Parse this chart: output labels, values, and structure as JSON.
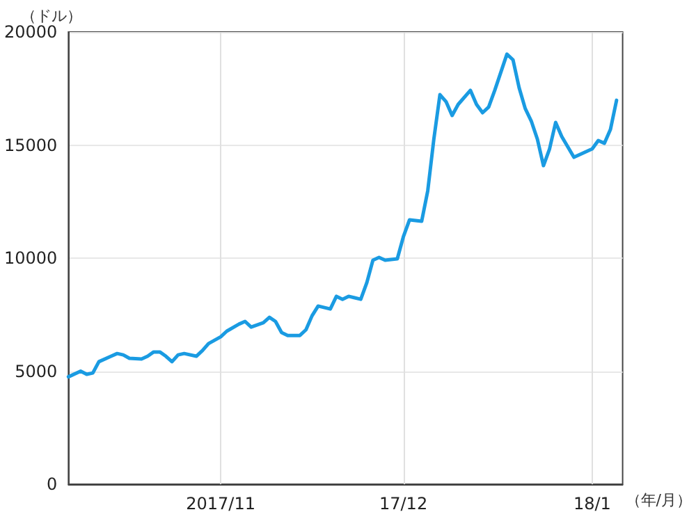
{
  "chart_data": {
    "type": "line",
    "ylabel": "（ドル）",
    "xlabel": "（年/月）",
    "x": [
      "2017-10-07",
      "2017-10-09",
      "2017-10-10",
      "2017-10-11",
      "2017-10-12",
      "2017-10-14",
      "2017-10-15",
      "2017-10-16",
      "2017-10-17",
      "2017-10-19",
      "2017-10-20",
      "2017-10-21",
      "2017-10-22",
      "2017-10-23",
      "2017-10-24",
      "2017-10-25",
      "2017-10-26",
      "2017-10-28",
      "2017-10-29",
      "2017-10-30",
      "2017-11-01",
      "2017-11-02",
      "2017-11-04",
      "2017-11-05",
      "2017-11-06",
      "2017-11-08",
      "2017-11-09",
      "2017-11-10",
      "2017-11-11",
      "2017-11-12",
      "2017-11-14",
      "2017-11-15",
      "2017-11-16",
      "2017-11-17",
      "2017-11-19",
      "2017-11-20",
      "2017-11-21",
      "2017-11-22",
      "2017-11-24",
      "2017-11-25",
      "2017-11-26",
      "2017-11-27",
      "2017-11-28",
      "2017-11-30",
      "2017-12-01",
      "2017-12-02",
      "2017-12-04",
      "2017-12-05",
      "2017-12-06",
      "2017-12-07",
      "2017-12-08",
      "2017-12-09",
      "2017-12-10",
      "2017-12-12",
      "2017-12-13",
      "2017-12-14",
      "2017-12-15",
      "2017-12-16",
      "2017-12-17",
      "2017-12-18",
      "2017-12-19",
      "2017-12-20",
      "2017-12-21",
      "2017-12-22",
      "2017-12-23",
      "2017-12-24",
      "2017-12-25",
      "2017-12-26",
      "2017-12-27",
      "2017-12-29",
      "2017-12-31",
      "2018-01-01",
      "2018-01-02",
      "2018-01-03",
      "2018-01-04",
      "2018-01-05"
    ],
    "series": [
      {
        "color": "#1a9be2",
        "values": [
          4750,
          5000,
          4860,
          4920,
          5420,
          5660,
          5780,
          5720,
          5570,
          5540,
          5660,
          5850,
          5850,
          5660,
          5420,
          5720,
          5780,
          5660,
          5910,
          6220,
          6520,
          6770,
          7080,
          7200,
          6950,
          7140,
          7380,
          7200,
          6710,
          6580,
          6580,
          6830,
          7450,
          7880,
          7750,
          8310,
          8180,
          8310,
          8180,
          8920,
          9910,
          10030,
          9910,
          9970,
          10950,
          11690,
          11630,
          12980,
          15260,
          17230,
          16920,
          16310,
          16800,
          17420,
          16800,
          16430,
          16680,
          17420,
          18220,
          19020,
          18770,
          17540,
          16620,
          16060,
          15260,
          14090,
          14830,
          16000,
          15380,
          14460,
          14710,
          14830,
          15200,
          15080,
          15690,
          16980
        ]
      }
    ],
    "xlim": [
      "2017-10-07",
      "2018-01-06"
    ],
    "xticks": [
      {
        "value": "2017-11-01",
        "label": "2017/11"
      },
      {
        "value": "2017-12-01",
        "label": "17/12"
      },
      {
        "value": "2018-01-01",
        "label": "18/1"
      }
    ],
    "ylim": [
      0,
      20000
    ],
    "yticks": [
      0,
      5000,
      10000,
      15000,
      20000
    ],
    "grid": true,
    "marker": "none",
    "line_style": "solid"
  }
}
